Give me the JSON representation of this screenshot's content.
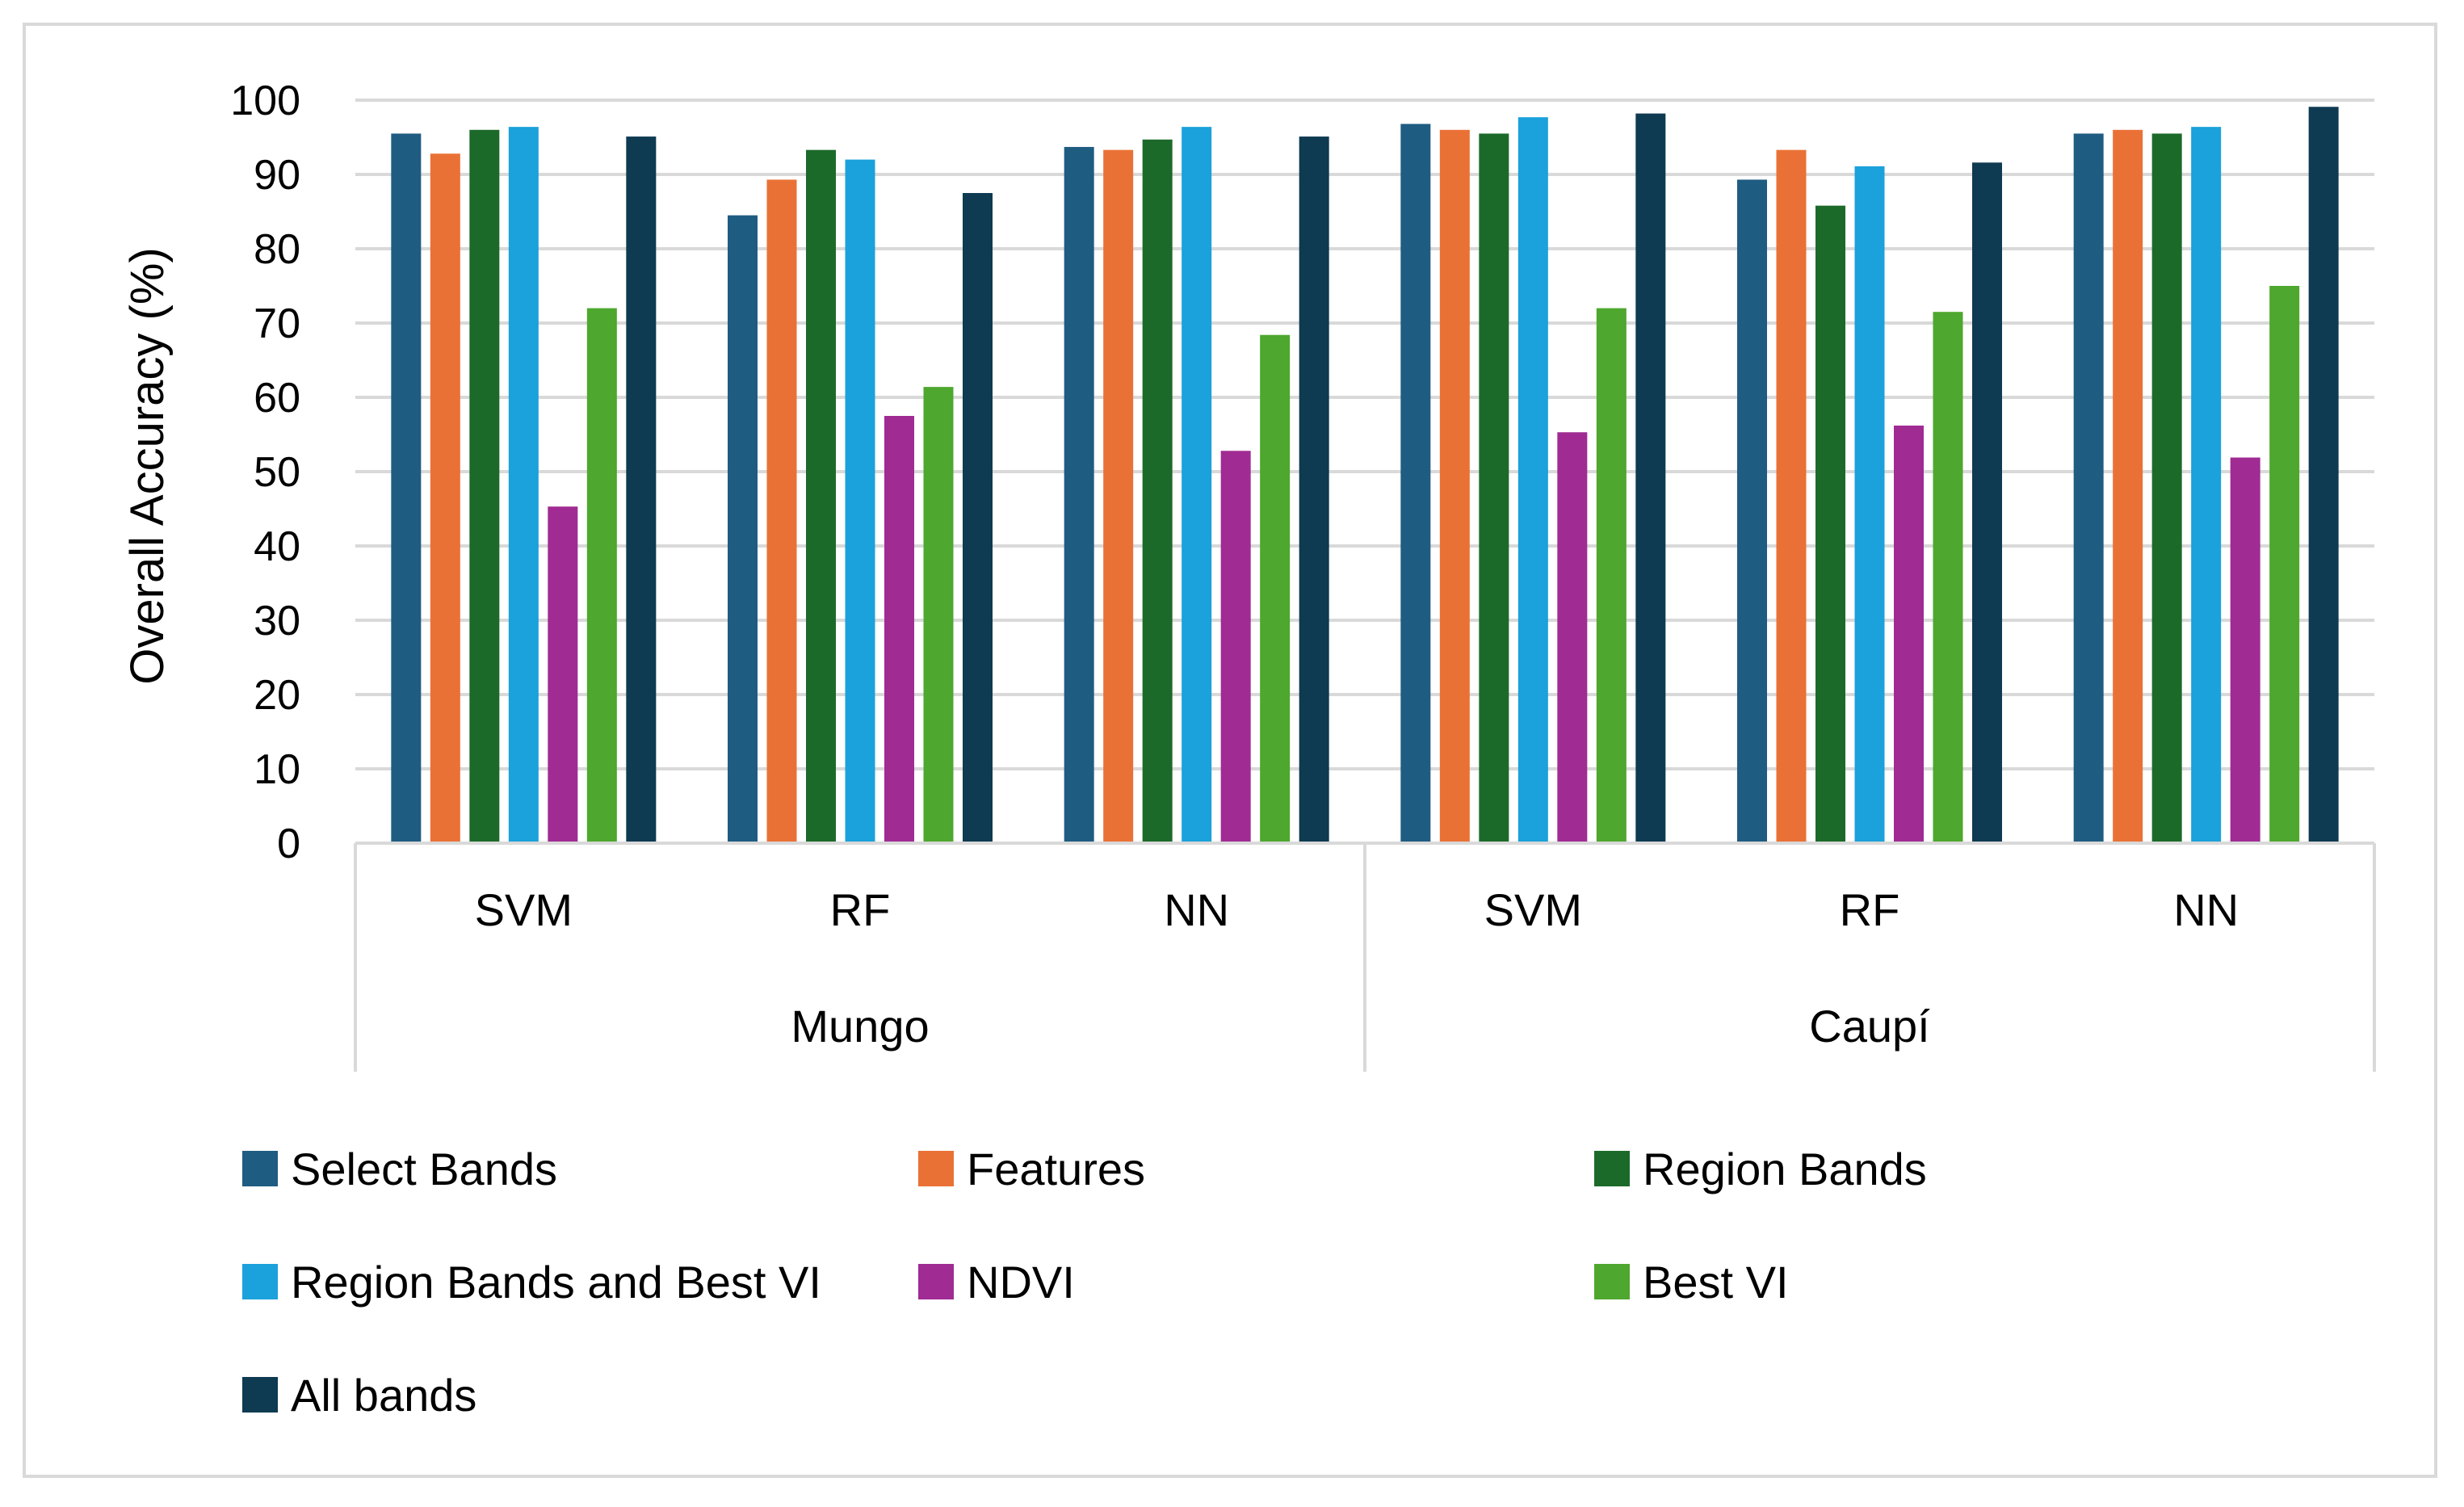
{
  "chart_data": {
    "type": "bar",
    "title": "",
    "xlabel": "",
    "ylabel": "Overall Accuracy (%)",
    "ylim": [
      0,
      100
    ],
    "yticks": [
      0,
      10,
      20,
      30,
      40,
      50,
      60,
      70,
      80,
      90,
      100
    ],
    "grid": true,
    "legend_position": "bottom",
    "groups": [
      {
        "name": "Mungo",
        "categories": [
          "SVM",
          "RF",
          "NN"
        ]
      },
      {
        "name": "Caupí",
        "categories": [
          "SVM",
          "RF",
          "NN"
        ]
      }
    ],
    "categories": [
      "SVM",
      "RF",
      "NN",
      "SVM",
      "RF",
      "NN"
    ],
    "series": [
      {
        "name": "Select Bands",
        "color": "#1F5C82",
        "values": [
          95.5,
          84.5,
          93.7,
          96.8,
          89.3,
          95.5
        ]
      },
      {
        "name": "Features",
        "color": "#EA7136",
        "values": [
          92.8,
          89.3,
          93.3,
          96.0,
          93.3,
          96.0
        ]
      },
      {
        "name": "Region Bands",
        "color": "#1C6A2A",
        "values": [
          96.0,
          93.3,
          94.7,
          95.5,
          85.8,
          95.5
        ]
      },
      {
        "name": "Region Bands and Best VI",
        "color": "#1BA1DB",
        "values": [
          96.4,
          92.0,
          96.4,
          97.7,
          91.1,
          96.4
        ]
      },
      {
        "name": "NDVI",
        "color": "#A02B93",
        "values": [
          45.3,
          57.5,
          52.8,
          55.3,
          56.2,
          51.9
        ]
      },
      {
        "name": "Best VI",
        "color": "#4EA72E",
        "values": [
          72.0,
          61.4,
          68.4,
          72.0,
          71.5,
          75.0
        ]
      },
      {
        "name": "All bands",
        "color": "#0E3A52",
        "values": [
          95.1,
          87.5,
          95.1,
          98.2,
          91.6,
          99.1
        ]
      }
    ]
  }
}
